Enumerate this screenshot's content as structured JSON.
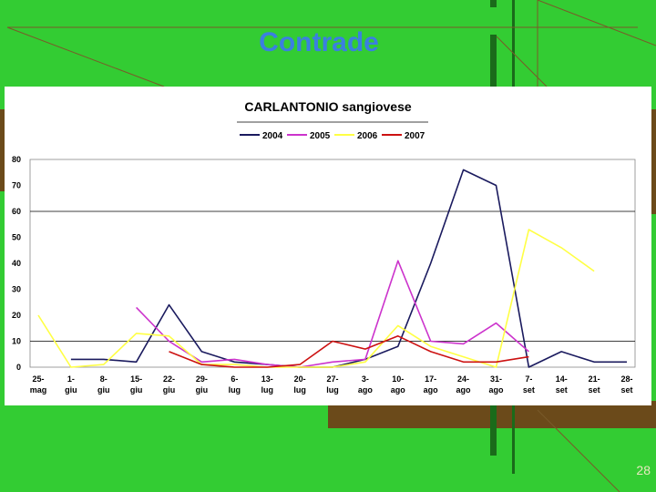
{
  "slide": {
    "title": "Contrade",
    "page_number": "28"
  },
  "chart_data": {
    "type": "line",
    "title": "CARLANTONIO   sangiovese",
    "xlabel": "",
    "ylabel": "",
    "ylim": [
      0,
      80
    ],
    "yticks": [
      0,
      10,
      20,
      30,
      40,
      50,
      60,
      70,
      80
    ],
    "grid": "major y at 60 and 10",
    "legend_position": "top",
    "categories": [
      [
        "25-",
        "mag"
      ],
      [
        "1-",
        "giu"
      ],
      [
        "8-",
        "giu"
      ],
      [
        "15-",
        "giu"
      ],
      [
        "22-",
        "giu"
      ],
      [
        "29-",
        "giu"
      ],
      [
        "6-",
        "lug"
      ],
      [
        "13-",
        "lug"
      ],
      [
        "20-",
        "lug"
      ],
      [
        "27-",
        "lug"
      ],
      [
        "3-",
        "ago"
      ],
      [
        "10-",
        "ago"
      ],
      [
        "17-",
        "ago"
      ],
      [
        "24-",
        "ago"
      ],
      [
        "31-",
        "ago"
      ],
      [
        "7-",
        "set"
      ],
      [
        "14-",
        "set"
      ],
      [
        "21-",
        "set"
      ],
      [
        "28-",
        "set"
      ]
    ],
    "series": [
      {
        "name": "2004",
        "color": "#1a1a5e",
        "values": [
          null,
          3,
          3,
          2,
          24,
          6,
          2,
          1,
          0,
          0,
          3,
          8,
          40,
          76,
          70,
          0,
          6,
          2,
          2
        ]
      },
      {
        "name": "2005",
        "color": "#cc33cc",
        "values": [
          null,
          null,
          null,
          23,
          10,
          2,
          3,
          1,
          0,
          2,
          3,
          41,
          10,
          9,
          17,
          6,
          null,
          null,
          null
        ]
      },
      {
        "name": "2006",
        "color": "#ffff44",
        "values": [
          20,
          0,
          1,
          13,
          12,
          1,
          1,
          0,
          0,
          0,
          2,
          16,
          8,
          4,
          0,
          53,
          46,
          37,
          null
        ]
      },
      {
        "name": "2007",
        "color": "#cc1111",
        "values": [
          null,
          null,
          null,
          null,
          6,
          1,
          0,
          0,
          1,
          10,
          7,
          12,
          6,
          2,
          2,
          4,
          null,
          null,
          null
        ]
      }
    ]
  }
}
